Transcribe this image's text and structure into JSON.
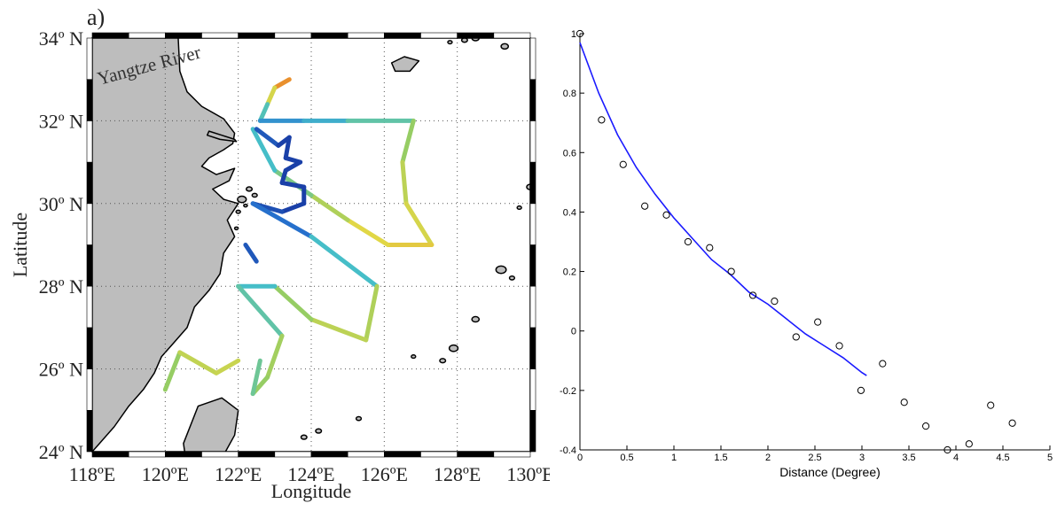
{
  "chart_data": [
    {
      "type": "map",
      "panel_label": "a)",
      "xlabel": "Longitude",
      "ylabel": "Latitude",
      "xlim": [
        118,
        130
      ],
      "ylim": [
        24,
        34
      ],
      "x_ticks": [
        118,
        120,
        122,
        124,
        126,
        128,
        130
      ],
      "y_ticks": [
        24,
        26,
        28,
        30,
        32,
        34
      ],
      "x_tick_labels": [
        "118ºE",
        "120ºE",
        "122ºE",
        "124ºE",
        "126ºE",
        "128ºE",
        "130ºE"
      ],
      "y_tick_labels": [
        "24º N",
        "26º N",
        "28º N",
        "30º N",
        "32º N",
        "34º N"
      ],
      "grid": "dotted",
      "annotation": "Yangtze River",
      "colors": {
        "land": "#bdbdbd",
        "coast": "#000000",
        "grid": "#555555"
      },
      "tracks": [
        {
          "points": [
            [
              123.4,
              33.0
            ],
            [
              123.0,
              32.8
            ],
            [
              122.8,
              32.4
            ],
            [
              122.6,
              32.0
            ]
          ],
          "values": [
            0.9,
            0.85,
            0.6,
            0.35
          ]
        },
        {
          "points": [
            [
              122.6,
              32.0
            ],
            [
              123.8,
              32.0
            ],
            [
              125.0,
              32.0
            ],
            [
              126.8,
              32.0
            ]
          ],
          "values": [
            0.3,
            0.35,
            0.45,
            0.55
          ]
        },
        {
          "points": [
            [
              126.8,
              32.0
            ],
            [
              126.5,
              31.0
            ],
            [
              126.6,
              30.0
            ],
            [
              127.3,
              29.0
            ],
            [
              126.1,
              29.0
            ],
            [
              125.0,
              29.6
            ],
            [
              124.0,
              30.2
            ],
            [
              123.0,
              30.8
            ],
            [
              122.4,
              31.8
            ]
          ],
          "values": [
            0.55,
            0.65,
            0.7,
            0.75,
            0.8,
            0.7,
            0.6,
            0.5,
            0.4
          ]
        },
        {
          "points": [
            [
              122.5,
              31.8
            ],
            [
              123.1,
              31.4
            ],
            [
              123.4,
              31.6
            ],
            [
              123.3,
              31.1
            ],
            [
              123.7,
              31.0
            ],
            [
              123.3,
              30.8
            ],
            [
              123.2,
              30.5
            ],
            [
              123.8,
              30.4
            ],
            [
              123.8,
              30.0
            ],
            [
              123.2,
              29.8
            ],
            [
              122.4,
              30.0
            ],
            [
              124.0,
              29.2
            ],
            [
              125.8,
              28.0
            ],
            [
              125.5,
              26.7
            ],
            [
              124.0,
              27.2
            ],
            [
              123.0,
              28.0
            ],
            [
              122.0,
              28.0
            ]
          ],
          "values": [
            0.2,
            0.1,
            0.05,
            0.1,
            0.05,
            0.1,
            0.05,
            0.1,
            0.05,
            0.1,
            0.15,
            0.3,
            0.6,
            0.7,
            0.65,
            0.55,
            0.35
          ]
        },
        {
          "points": [
            [
              122.2,
              29.0
            ],
            [
              122.5,
              28.6
            ]
          ],
          "values": [
            0.2,
            0.1
          ]
        },
        {
          "points": [
            [
              122.0,
              28.0
            ],
            [
              123.2,
              26.8
            ],
            [
              122.8,
              25.8
            ],
            [
              122.4,
              25.4
            ],
            [
              122.6,
              26.2
            ]
          ],
          "values": [
            0.4,
            0.6,
            0.65,
            0.55,
            0.5
          ]
        },
        {
          "points": [
            [
              120.0,
              25.5
            ],
            [
              120.4,
              26.4
            ],
            [
              121.4,
              25.9
            ],
            [
              122.0,
              26.2
            ]
          ],
          "values": [
            0.55,
            0.65,
            0.72,
            0.68
          ]
        }
      ]
    },
    {
      "type": "scatter",
      "xlabel": "Distance (Degree)",
      "ylabel": "",
      "xlim": [
        0,
        5
      ],
      "ylim": [
        -0.4,
        1
      ],
      "x_ticks": [
        0,
        0.5,
        1,
        1.5,
        2,
        2.5,
        3,
        3.5,
        4,
        4.5,
        5
      ],
      "y_ticks": [
        -0.4,
        -0.2,
        0,
        0.2,
        0.4,
        0.6,
        0.8,
        1
      ],
      "x_tick_labels": [
        "0",
        "0.5",
        "1",
        "1.5",
        "2",
        "2.5",
        "3",
        "3.5",
        "4",
        "4.5",
        "5"
      ],
      "y_tick_labels": [
        "-0.4",
        "-0.2",
        "0",
        "0.2",
        "0.4",
        "0.6",
        "0.8",
        "1"
      ],
      "grid": false,
      "series": [
        {
          "kind": "points",
          "color": "#000000",
          "x": [
            0.0,
            0.23,
            0.46,
            0.69,
            0.92,
            1.15,
            1.38,
            1.61,
            1.84,
            2.07,
            2.3,
            2.53,
            2.76,
            2.99,
            3.22,
            3.45,
            3.68,
            3.91,
            4.14,
            4.37,
            4.6
          ],
          "y": [
            1.0,
            0.71,
            0.56,
            0.42,
            0.39,
            0.3,
            0.28,
            0.2,
            0.12,
            0.1,
            -0.02,
            0.03,
            -0.05,
            -0.2,
            -0.11,
            -0.24,
            -0.32,
            -0.4,
            -0.38,
            -0.25,
            -0.31
          ]
        },
        {
          "kind": "line",
          "color": "#1a1aff",
          "x": [
            0.0,
            0.2,
            0.4,
            0.6,
            0.8,
            1.0,
            1.2,
            1.4,
            1.6,
            1.8,
            2.0,
            2.2,
            2.4,
            2.6,
            2.8,
            3.0,
            3.05
          ],
          "y": [
            0.97,
            0.8,
            0.66,
            0.55,
            0.46,
            0.38,
            0.31,
            0.24,
            0.19,
            0.13,
            0.09,
            0.04,
            -0.01,
            -0.05,
            -0.09,
            -0.14,
            -0.15
          ]
        }
      ]
    }
  ]
}
